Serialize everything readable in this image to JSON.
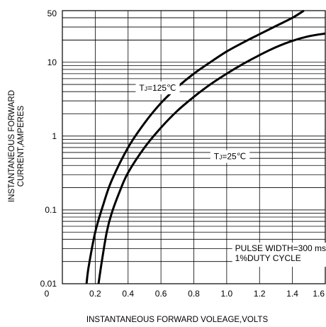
{
  "chart_data": {
    "type": "line",
    "title": "",
    "xlabel": "INSTANTANEOUS FORWARD VOLEAGE,VOLTS",
    "ylabel_lines": [
      "INSTANTANEOUS FORWARD",
      "CURRENT,AMPERES"
    ],
    "xlim": [
      0,
      1.6
    ],
    "ylim": [
      0.01,
      50
    ],
    "y_scale": "log",
    "grid": true,
    "x_ticks": [
      {
        "value": 0,
        "label": "0"
      },
      {
        "value": 0.2,
        "label": "0.2"
      },
      {
        "value": 0.4,
        "label": "0.4"
      },
      {
        "value": 0.6,
        "label": "0.6"
      },
      {
        "value": 0.8,
        "label": "0.8"
      },
      {
        "value": 1.0,
        "label": "1.0"
      },
      {
        "value": 1.2,
        "label": "1.2"
      },
      {
        "value": 1.4,
        "label": "1.4"
      },
      {
        "value": 1.6,
        "label": "1.6"
      }
    ],
    "y_ticks": [
      {
        "value": 0.01,
        "label": "0.01"
      },
      {
        "value": 0.1,
        "label": "0.1"
      },
      {
        "value": 1,
        "label": "1"
      },
      {
        "value": 10,
        "label": "10"
      },
      {
        "value": 50,
        "label": "50"
      }
    ],
    "series": [
      {
        "name": "TJ=125℃",
        "x": [
          0.147,
          0.16,
          0.2,
          0.25,
          0.3,
          0.4,
          0.5,
          0.6,
          0.7,
          0.8,
          0.9,
          1.0,
          1.1,
          1.2,
          1.3,
          1.4,
          1.47
        ],
        "y": [
          0.01,
          0.017,
          0.05,
          0.12,
          0.25,
          0.7,
          1.5,
          2.8,
          4.6,
          7.0,
          10.0,
          14.0,
          18.5,
          24.0,
          31.0,
          40.0,
          50.0
        ]
      },
      {
        "name": "TJ=25℃",
        "x": [
          0.22,
          0.24,
          0.27,
          0.3,
          0.35,
          0.4,
          0.5,
          0.6,
          0.7,
          0.8,
          0.9,
          1.0,
          1.1,
          1.2,
          1.3,
          1.4,
          1.5,
          1.6
        ],
        "y": [
          0.01,
          0.02,
          0.05,
          0.09,
          0.18,
          0.32,
          0.7,
          1.3,
          2.2,
          3.4,
          5.0,
          7.0,
          9.5,
          12.5,
          16.0,
          19.5,
          22.5,
          24.5
        ]
      }
    ],
    "annotations": [
      {
        "series_label": "TJ=125℃",
        "sub": "J",
        "text": "=125℃",
        "at": {
          "x": 0.58,
          "y": 4.5
        }
      },
      {
        "series_label": "TJ=25℃",
        "sub": "J",
        "text": "=25℃",
        "at": {
          "x": 1.02,
          "y": 0.53
        }
      },
      {
        "lines": [
          "PULSE WIDTH=300 ms",
          "1%DUTY CYCLE"
        ],
        "at": {
          "x": 1.37,
          "y": 0.027
        }
      }
    ]
  }
}
